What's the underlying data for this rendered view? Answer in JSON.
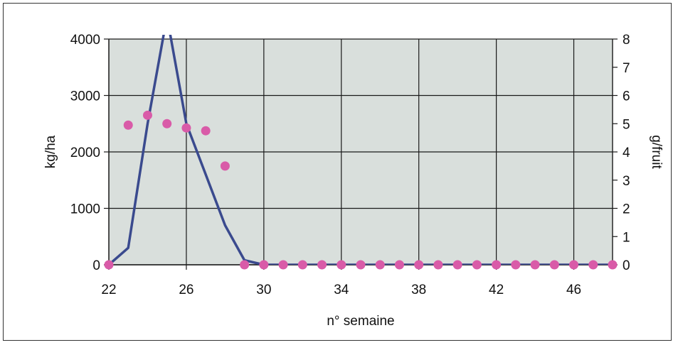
{
  "chart_data": {
    "type": "line",
    "title": "",
    "xlabel": "n° semaine",
    "ylabel": "kg/ha",
    "y2label": "g/fruit",
    "xlim": [
      22,
      48
    ],
    "ylim": [
      0,
      4000
    ],
    "y2lim": [
      0,
      8
    ],
    "x_ticks": [
      22,
      26,
      30,
      34,
      38,
      42,
      46
    ],
    "y_ticks": [
      0,
      1000,
      2000,
      3000,
      4000
    ],
    "y2_ticks": [
      0,
      1,
      2,
      3,
      4,
      5,
      6,
      7,
      8
    ],
    "grid": true,
    "legend": "none",
    "series": [
      {
        "type": "line",
        "axis": "left",
        "color": "#3a4a8e",
        "x": [
          22,
          23,
          24,
          25,
          26,
          27,
          28,
          29,
          30,
          31,
          32,
          33,
          34,
          35,
          36,
          37,
          38,
          39,
          40,
          41,
          42,
          43,
          44,
          45,
          46,
          47,
          48
        ],
        "values": [
          0,
          300,
          2500,
          4400,
          2500,
          1600,
          700,
          80,
          0,
          0,
          0,
          0,
          0,
          0,
          0,
          0,
          0,
          0,
          0,
          0,
          0,
          0,
          0,
          0,
          0,
          0,
          0
        ]
      },
      {
        "type": "scatter",
        "axis": "right",
        "color": "#d95ba8",
        "x": [
          22,
          23,
          24,
          25,
          26,
          27,
          28,
          29,
          30,
          31,
          32,
          33,
          34,
          35,
          36,
          37,
          38,
          39,
          40,
          41,
          42,
          43,
          44,
          45,
          46,
          47,
          48
        ],
        "values": [
          0,
          4.95,
          5.3,
          5.0,
          4.85,
          4.75,
          3.5,
          0,
          0,
          0,
          0,
          0,
          0,
          0,
          0,
          0,
          0,
          0,
          0,
          0,
          0,
          0,
          0,
          0,
          0,
          0,
          0
        ]
      }
    ],
    "colors": {
      "plot_background": "#d9dfdc",
      "gridline": "#1a1a1a"
    }
  }
}
